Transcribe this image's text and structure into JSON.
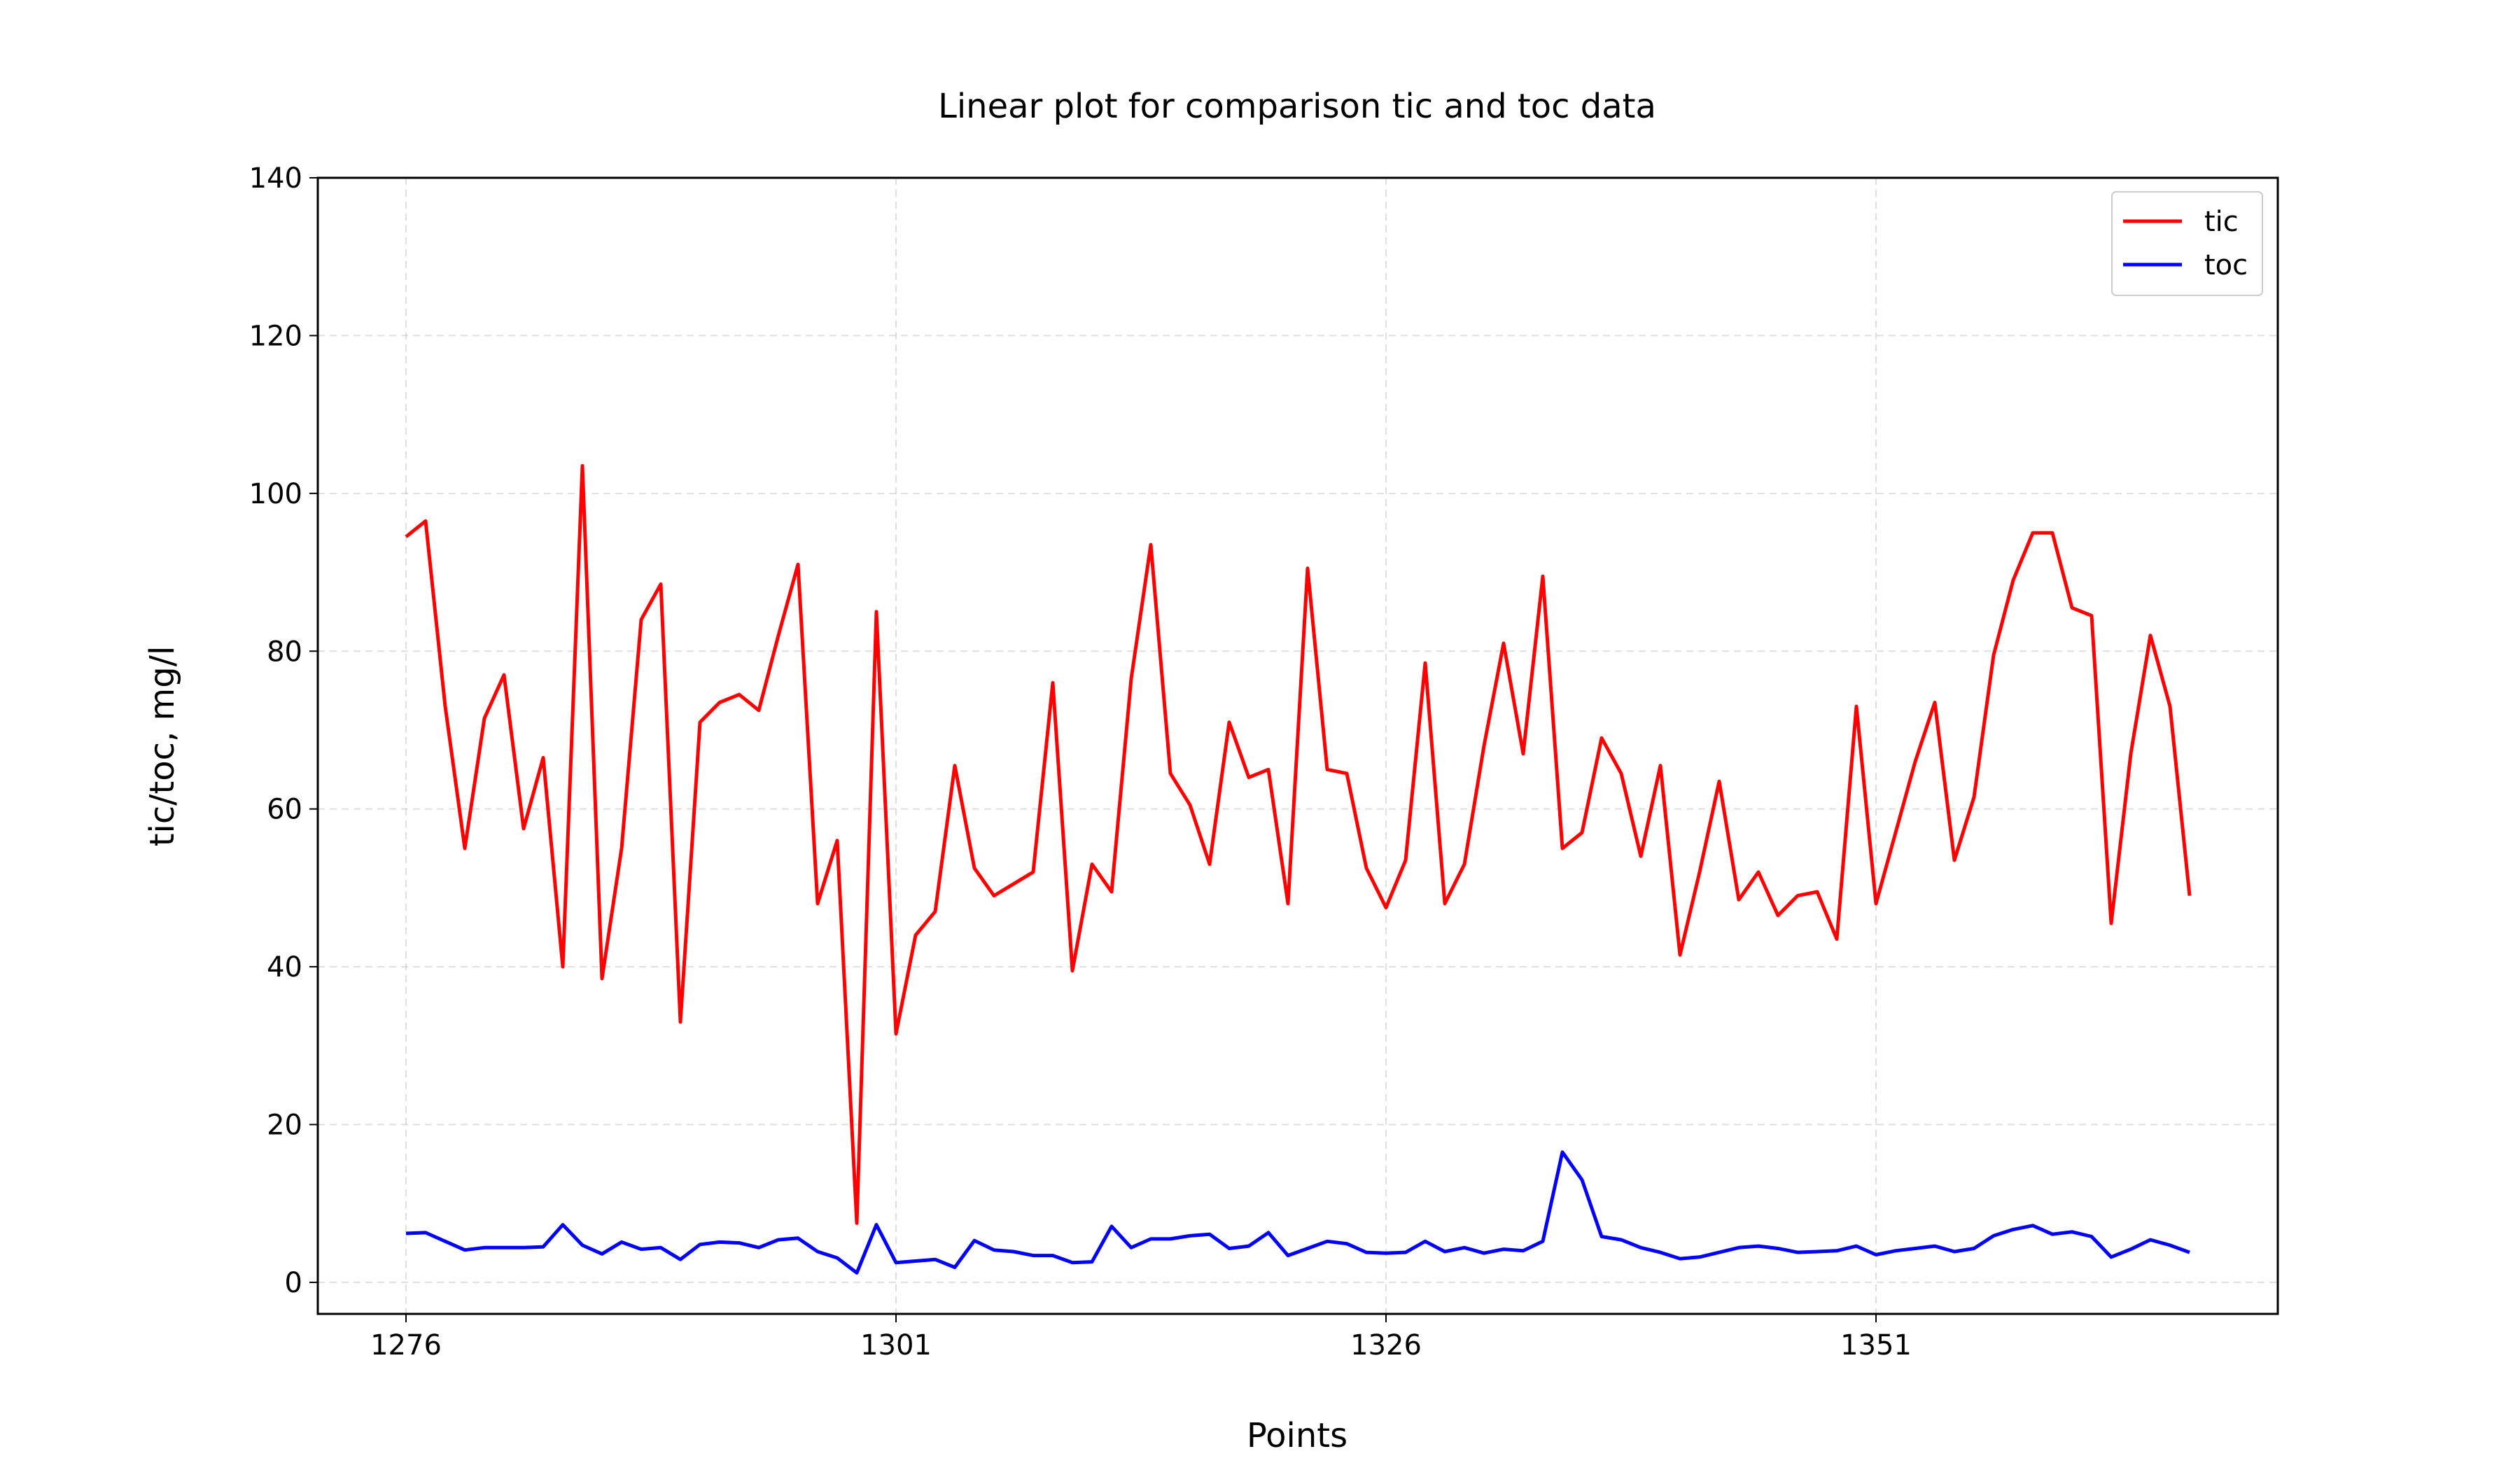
{
  "chart_data": {
    "type": "line",
    "title": "Linear plot for comparison tic and toc data",
    "xlabel": "Points",
    "ylabel": "tic/toc, mg/l",
    "xlim": [
      1271.5,
      1371.5
    ],
    "ylim": [
      -4,
      140
    ],
    "xticks": [
      1276,
      1301,
      1326,
      1351
    ],
    "yticks": [
      0,
      20,
      40,
      60,
      80,
      100,
      120,
      140
    ],
    "grid": true,
    "legend": "top-right",
    "x_start": 1276,
    "series": [
      {
        "name": "tic",
        "color": "#ff0000",
        "values": [
          94.5,
          96.5,
          73,
          55,
          71.5,
          77,
          57.5,
          66.5,
          40,
          103.5,
          38.5,
          55,
          84,
          88.5,
          33,
          71,
          73.5,
          74.5,
          72.5,
          82,
          91,
          48,
          56,
          7.5,
          85,
          31.5,
          44,
          47,
          65.5,
          52.5,
          49,
          50.5,
          52,
          76,
          39.5,
          53,
          49.5,
          76.5,
          93.5,
          64.5,
          60.5,
          53,
          71,
          64,
          65,
          48,
          90.5,
          65,
          64.5,
          52.5,
          47.5,
          53.5,
          78.5,
          48,
          53,
          68,
          81,
          67,
          89.5,
          55,
          57,
          69,
          64.5,
          54,
          65.5,
          41.5,
          52,
          63.5,
          48.5,
          52,
          46.5,
          49,
          49.5,
          43.5,
          73,
          48,
          57,
          66,
          73.5,
          53.5,
          61.5,
          79.5,
          89,
          95,
          95,
          85.5,
          84.5,
          45.5,
          67,
          82,
          73,
          49
        ]
      },
      {
        "name": "toc",
        "color": "#0000ff",
        "values": [
          6.2,
          6.3,
          5.2,
          4.1,
          4.4,
          4.4,
          4.4,
          4.5,
          7.3,
          4.7,
          3.6,
          5.1,
          4.2,
          4.4,
          2.9,
          4.8,
          5.1,
          5.0,
          4.4,
          5.4,
          5.6,
          3.9,
          3.1,
          1.2,
          7.3,
          2.5,
          2.7,
          2.9,
          1.9,
          5.3,
          4.1,
          3.9,
          3.4,
          3.4,
          2.5,
          2.6,
          7.1,
          4.4,
          5.5,
          5.5,
          5.9,
          6.1,
          4.3,
          4.6,
          6.3,
          3.4,
          4.3,
          5.2,
          4.9,
          3.8,
          3.7,
          3.8,
          5.2,
          3.9,
          4.4,
          3.7,
          4.2,
          4.0,
          5.2,
          16.5,
          13.0,
          5.8,
          5.4,
          4.4,
          3.8,
          3.0,
          3.2,
          3.8,
          4.4,
          4.6,
          4.3,
          3.8,
          3.9,
          4.0,
          4.6,
          3.5,
          4.0,
          4.3,
          4.6,
          3.9,
          4.3,
          5.9,
          6.7,
          7.2,
          6.1,
          6.4,
          5.8,
          3.2,
          4.2,
          5.4,
          4.7,
          3.8
        ]
      }
    ]
  }
}
